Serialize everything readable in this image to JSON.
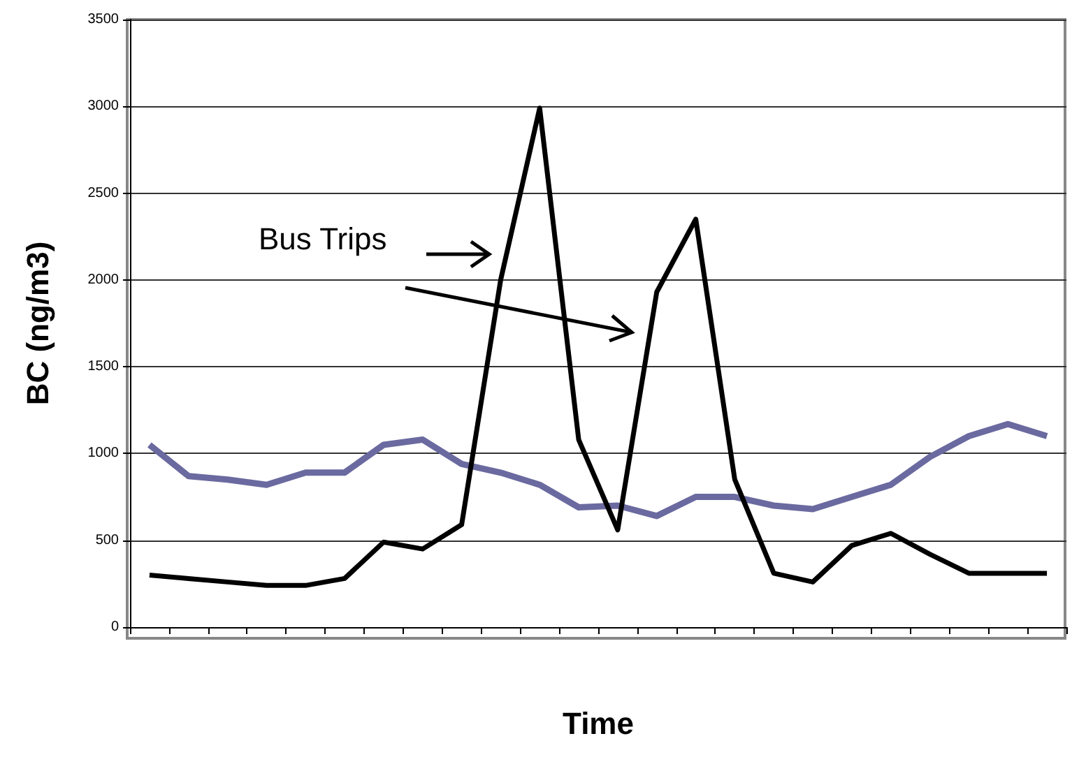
{
  "chart_data": {
    "type": "line",
    "xlabel": "Time",
    "ylabel": "BC (ng/m3)",
    "categories": [
      null,
      null,
      null,
      null,
      null,
      null,
      null,
      null,
      null,
      null,
      null,
      null,
      null,
      null,
      null,
      null,
      null,
      null,
      null,
      null,
      null,
      null,
      null,
      null
    ],
    "series": [
      {
        "color": "#000000",
        "values": [
          300,
          280,
          260,
          240,
          240,
          280,
          490,
          450,
          590,
          2000,
          2990,
          1080,
          560,
          1930,
          2350,
          850,
          310,
          260,
          470,
          540,
          420,
          310,
          310,
          310
        ]
      },
      {
        "color": "#6a6aa0",
        "values": [
          1050,
          870,
          850,
          820,
          890,
          890,
          1050,
          1080,
          940,
          890,
          820,
          690,
          700,
          640,
          750,
          750,
          700,
          680,
          750,
          820,
          980,
          1100,
          1170,
          1100
        ]
      }
    ],
    "ylim": [
      0,
      3500
    ],
    "yticks": [
      0,
      500,
      1000,
      1500,
      2000,
      2500,
      3000,
      3500
    ],
    "grid": "y",
    "marker": "none",
    "line_style": "solid",
    "annotations": [
      "Bus Trips"
    ]
  }
}
